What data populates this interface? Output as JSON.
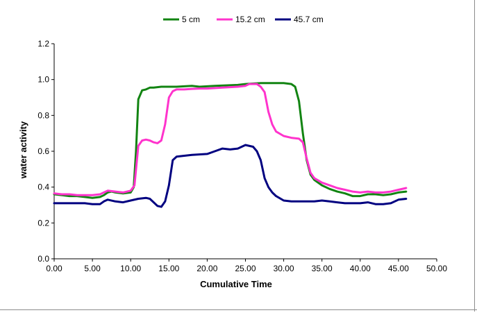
{
  "chart_data": {
    "type": "line",
    "title": "",
    "xlabel": "Cumulative Time",
    "ylabel": "water activity",
    "xlim": [
      0,
      50
    ],
    "ylim": [
      0,
      1.2
    ],
    "x_ticks": [
      "0.00",
      "5.00",
      "10.00",
      "15.00",
      "20.00",
      "25.00",
      "30.00",
      "35.00",
      "40.00",
      "45.00",
      "50.00"
    ],
    "y_ticks": [
      "0.0",
      "0.2",
      "0.4",
      "0.6",
      "0.8",
      "1.0",
      "1.2"
    ],
    "grid": false,
    "legend_position": "top",
    "series": [
      {
        "name": "5 cm",
        "color": "#128412",
        "points": [
          [
            0,
            0.36
          ],
          [
            1,
            0.355
          ],
          [
            2,
            0.35
          ],
          [
            3,
            0.35
          ],
          [
            4,
            0.345
          ],
          [
            5,
            0.34
          ],
          [
            6,
            0.345
          ],
          [
            6.5,
            0.355
          ],
          [
            7,
            0.37
          ],
          [
            7.5,
            0.375
          ],
          [
            8,
            0.37
          ],
          [
            9,
            0.365
          ],
          [
            10,
            0.37
          ],
          [
            10.4,
            0.4
          ],
          [
            10.7,
            0.6
          ],
          [
            11,
            0.89
          ],
          [
            11.5,
            0.94
          ],
          [
            12,
            0.945
          ],
          [
            12.5,
            0.955
          ],
          [
            13,
            0.955
          ],
          [
            14,
            0.96
          ],
          [
            16,
            0.96
          ],
          [
            18,
            0.965
          ],
          [
            19,
            0.96
          ],
          [
            21,
            0.965
          ],
          [
            24,
            0.97
          ],
          [
            25,
            0.975
          ],
          [
            27,
            0.98
          ],
          [
            28,
            0.98
          ],
          [
            29,
            0.98
          ],
          [
            30,
            0.98
          ],
          [
            31,
            0.975
          ],
          [
            31.5,
            0.96
          ],
          [
            32,
            0.88
          ],
          [
            32.5,
            0.7
          ],
          [
            33,
            0.55
          ],
          [
            33.5,
            0.47
          ],
          [
            34,
            0.44
          ],
          [
            35,
            0.41
          ],
          [
            36,
            0.39
          ],
          [
            37,
            0.375
          ],
          [
            38,
            0.365
          ],
          [
            39,
            0.35
          ],
          [
            40,
            0.35
          ],
          [
            41,
            0.36
          ],
          [
            42,
            0.36
          ],
          [
            43,
            0.355
          ],
          [
            44,
            0.36
          ],
          [
            45,
            0.37
          ],
          [
            46,
            0.375
          ]
        ]
      },
      {
        "name": "15.2 cm",
        "color": "#ff33cc",
        "points": [
          [
            0,
            0.365
          ],
          [
            1,
            0.36
          ],
          [
            2,
            0.36
          ],
          [
            3,
            0.355
          ],
          [
            4,
            0.355
          ],
          [
            5,
            0.355
          ],
          [
            6,
            0.36
          ],
          [
            6.5,
            0.37
          ],
          [
            7,
            0.38
          ],
          [
            8,
            0.375
          ],
          [
            9,
            0.37
          ],
          [
            10,
            0.38
          ],
          [
            10.5,
            0.41
          ],
          [
            11,
            0.63
          ],
          [
            11.5,
            0.66
          ],
          [
            12,
            0.665
          ],
          [
            12.5,
            0.66
          ],
          [
            13,
            0.65
          ],
          [
            13.5,
            0.645
          ],
          [
            14,
            0.66
          ],
          [
            14.5,
            0.75
          ],
          [
            15,
            0.9
          ],
          [
            15.5,
            0.935
          ],
          [
            16,
            0.945
          ],
          [
            17,
            0.945
          ],
          [
            18,
            0.948
          ],
          [
            19,
            0.95
          ],
          [
            20,
            0.95
          ],
          [
            22,
            0.955
          ],
          [
            24,
            0.96
          ],
          [
            25,
            0.965
          ],
          [
            25.5,
            0.975
          ],
          [
            26,
            0.975
          ],
          [
            26.5,
            0.975
          ],
          [
            27,
            0.96
          ],
          [
            27.5,
            0.93
          ],
          [
            28,
            0.82
          ],
          [
            28.5,
            0.75
          ],
          [
            29,
            0.71
          ],
          [
            30,
            0.685
          ],
          [
            31,
            0.675
          ],
          [
            32,
            0.67
          ],
          [
            32.5,
            0.65
          ],
          [
            33,
            0.56
          ],
          [
            33.5,
            0.48
          ],
          [
            34,
            0.45
          ],
          [
            35,
            0.425
          ],
          [
            36,
            0.41
          ],
          [
            37,
            0.395
          ],
          [
            38,
            0.385
          ],
          [
            39,
            0.375
          ],
          [
            40,
            0.37
          ],
          [
            41,
            0.375
          ],
          [
            42,
            0.37
          ],
          [
            43,
            0.37
          ],
          [
            44,
            0.375
          ],
          [
            45,
            0.385
          ],
          [
            46,
            0.395
          ]
        ]
      },
      {
        "name": "45.7 cm",
        "color": "#000080",
        "points": [
          [
            0,
            0.31
          ],
          [
            2,
            0.31
          ],
          [
            4,
            0.31
          ],
          [
            5,
            0.305
          ],
          [
            6,
            0.305
          ],
          [
            6.5,
            0.32
          ],
          [
            7,
            0.33
          ],
          [
            8,
            0.32
          ],
          [
            9,
            0.315
          ],
          [
            10,
            0.325
          ],
          [
            11,
            0.335
          ],
          [
            12,
            0.34
          ],
          [
            12.5,
            0.335
          ],
          [
            13,
            0.315
          ],
          [
            13.5,
            0.295
          ],
          [
            14,
            0.29
          ],
          [
            14.5,
            0.32
          ],
          [
            15,
            0.41
          ],
          [
            15.5,
            0.55
          ],
          [
            16,
            0.57
          ],
          [
            17,
            0.575
          ],
          [
            18,
            0.58
          ],
          [
            20,
            0.585
          ],
          [
            21,
            0.6
          ],
          [
            22,
            0.615
          ],
          [
            23,
            0.61
          ],
          [
            24,
            0.615
          ],
          [
            25,
            0.635
          ],
          [
            26,
            0.625
          ],
          [
            26.5,
            0.6
          ],
          [
            27,
            0.55
          ],
          [
            27.5,
            0.45
          ],
          [
            28,
            0.4
          ],
          [
            28.5,
            0.37
          ],
          [
            29,
            0.35
          ],
          [
            30,
            0.325
          ],
          [
            31,
            0.32
          ],
          [
            32,
            0.32
          ],
          [
            33,
            0.32
          ],
          [
            34,
            0.32
          ],
          [
            35,
            0.325
          ],
          [
            36,
            0.32
          ],
          [
            37,
            0.315
          ],
          [
            38,
            0.31
          ],
          [
            39,
            0.31
          ],
          [
            40,
            0.31
          ],
          [
            41,
            0.315
          ],
          [
            42,
            0.305
          ],
          [
            43,
            0.305
          ],
          [
            44,
            0.31
          ],
          [
            45,
            0.33
          ],
          [
            46,
            0.335
          ]
        ]
      }
    ]
  }
}
